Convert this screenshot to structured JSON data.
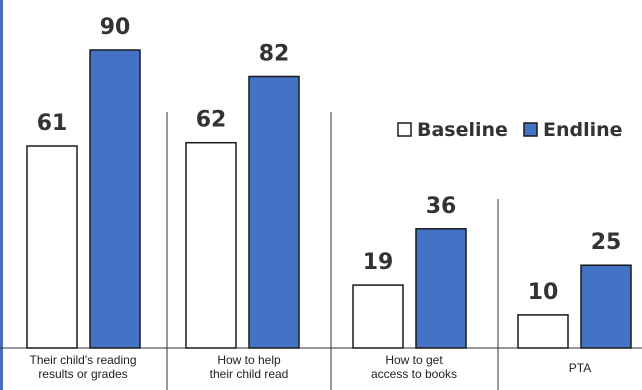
{
  "chart_data": {
    "type": "bar",
    "categories": [
      [
        "Their child's reading",
        "results or grades"
      ],
      [
        "How to help",
        "their child read"
      ],
      [
        "How to get",
        "access to books"
      ],
      [
        "PTA"
      ]
    ],
    "series": [
      {
        "name": "Baseline",
        "values": [
          61,
          62,
          19,
          10
        ],
        "color": "#ffffff",
        "stroke": "#1a1a1a"
      },
      {
        "name": "Endline",
        "values": [
          90,
          82,
          36,
          25
        ],
        "color": "#4472c4",
        "stroke": "#1a1a1a"
      }
    ],
    "ylim": [
      0,
      90
    ],
    "legend_position": "top-right",
    "grid": false
  }
}
